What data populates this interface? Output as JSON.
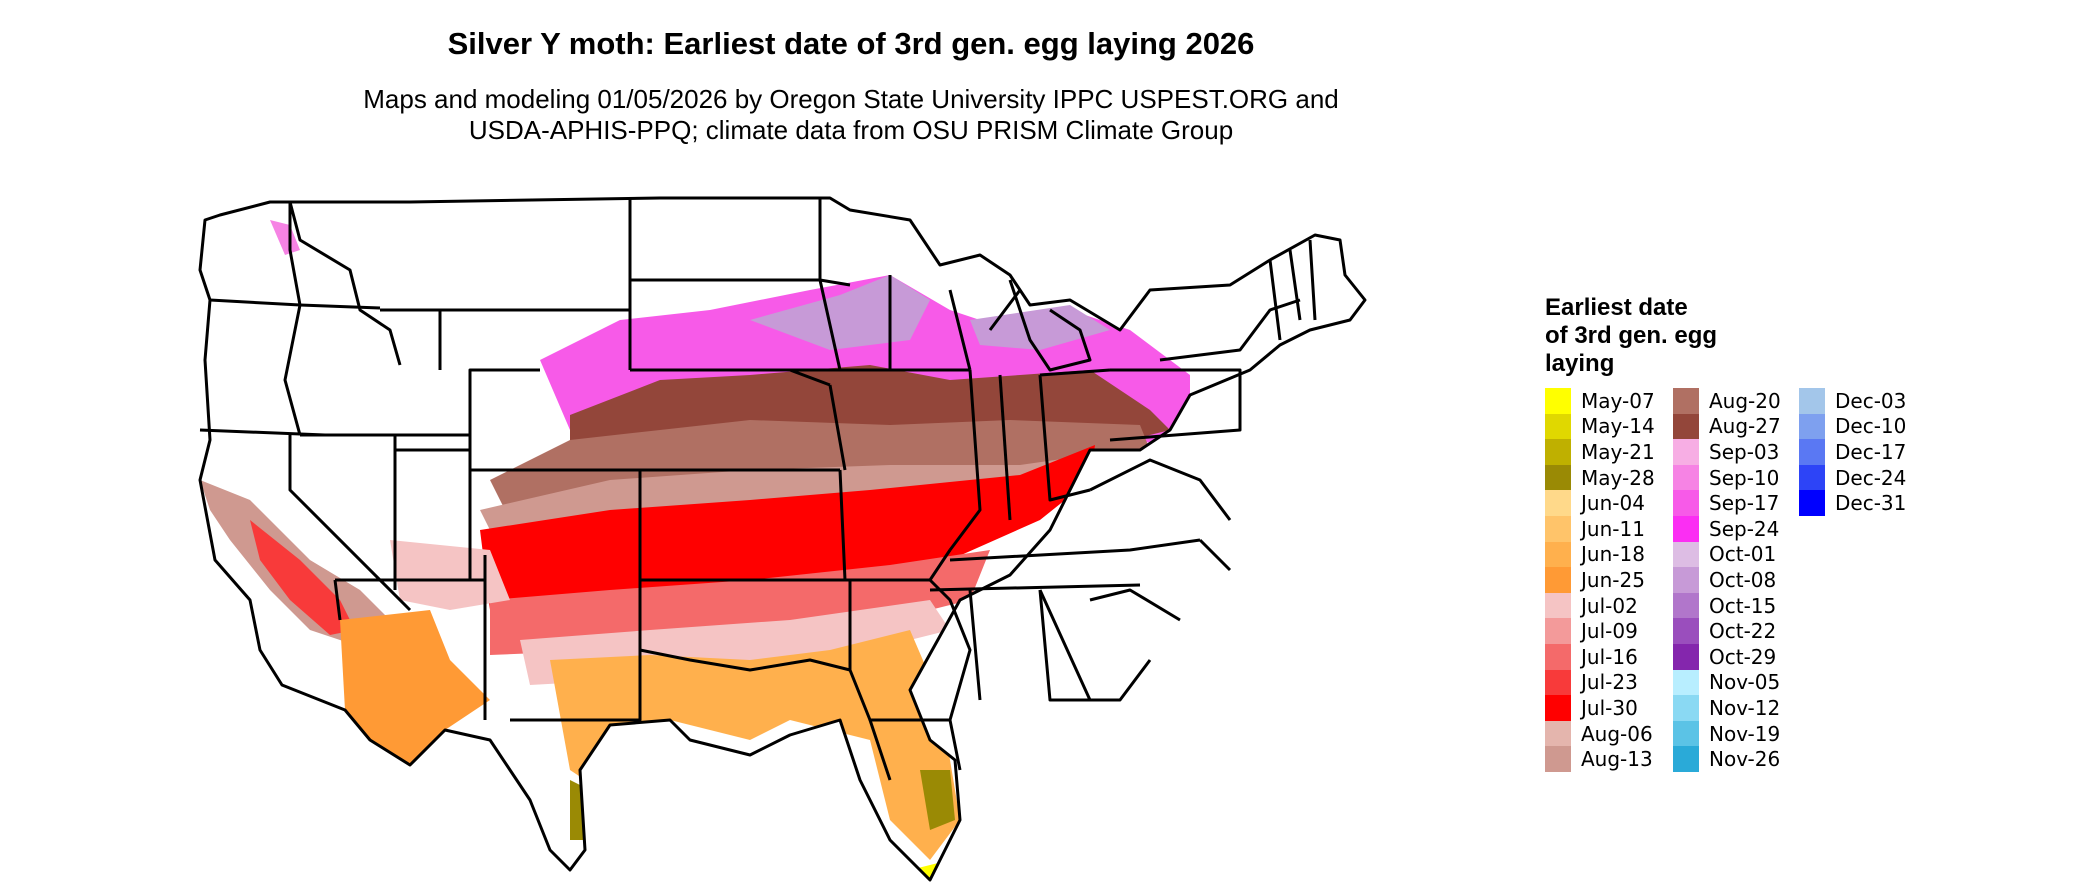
{
  "title": "Silver Y moth: Earliest date of 3rd gen. egg laying 2026",
  "subtitle": [
    "Maps and modeling 01/05/2026 by Oregon State University IPPC USPEST.ORG and",
    "USDA-APHIS-PPQ; climate data from OSU PRISM Climate Group"
  ],
  "legend": {
    "title_lines": [
      "Earliest date",
      "of 3rd gen. egg",
      "laying"
    ],
    "columns": [
      [
        {
          "label": "May-07",
          "color": "#ffff00"
        },
        {
          "label": "May-14",
          "color": "#e0d800"
        },
        {
          "label": "May-21",
          "color": "#bfb000"
        },
        {
          "label": "May-28",
          "color": "#9a8a05"
        },
        {
          "label": "Jun-04",
          "color": "#ffd98a"
        },
        {
          "label": "Jun-11",
          "color": "#ffc46a"
        },
        {
          "label": "Jun-18",
          "color": "#ffb04d"
        },
        {
          "label": "Jun-25",
          "color": "#ff9a35"
        },
        {
          "label": "Jul-02",
          "color": "#f5c4c4"
        },
        {
          "label": "Jul-09",
          "color": "#f39a9a"
        },
        {
          "label": "Jul-16",
          "color": "#f46a6a"
        },
        {
          "label": "Jul-23",
          "color": "#f83a3a"
        },
        {
          "label": "Jul-30",
          "color": "#ff0000"
        },
        {
          "label": "Aug-06",
          "color": "#e4b5ad"
        },
        {
          "label": "Aug-13",
          "color": "#cf9990"
        }
      ],
      [
        {
          "label": "Aug-20",
          "color": "#b07063"
        },
        {
          "label": "Aug-27",
          "color": "#93463a"
        },
        {
          "label": "Sep-03",
          "color": "#f7aee4"
        },
        {
          "label": "Sep-10",
          "color": "#f683e4"
        },
        {
          "label": "Sep-17",
          "color": "#f75ae8"
        },
        {
          "label": "Sep-24",
          "color": "#fb2ef3"
        },
        {
          "label": "Oct-01",
          "color": "#ddbde4"
        },
        {
          "label": "Oct-08",
          "color": "#c79ad7"
        },
        {
          "label": "Oct-15",
          "color": "#b176cb"
        },
        {
          "label": "Oct-22",
          "color": "#9a4ebd"
        },
        {
          "label": "Oct-29",
          "color": "#8426ad"
        },
        {
          "label": "Nov-05",
          "color": "#b8eeff"
        },
        {
          "label": "Nov-12",
          "color": "#8ad9f3"
        },
        {
          "label": "Nov-19",
          "color": "#5bc3e6"
        },
        {
          "label": "Nov-26",
          "color": "#2aaad8"
        }
      ],
      [
        {
          "label": "Dec-03",
          "color": "#a3c6ea"
        },
        {
          "label": "Dec-10",
          "color": "#7ea0ef"
        },
        {
          "label": "Dec-17",
          "color": "#5a78f3"
        },
        {
          "label": "Dec-24",
          "color": "#2d44f7"
        },
        {
          "label": "Dec-31",
          "color": "#0000ff"
        }
      ]
    ]
  }
}
